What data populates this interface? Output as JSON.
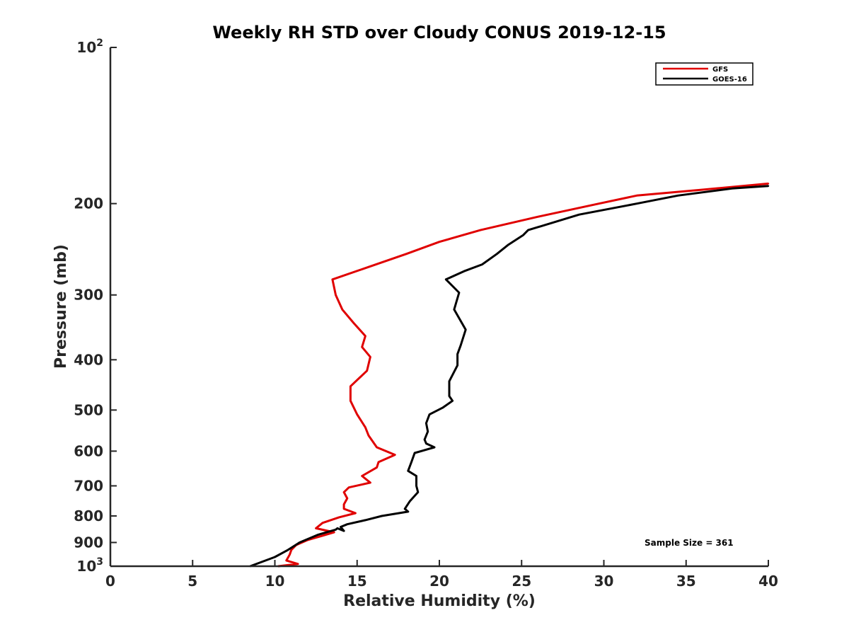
{
  "chart_data": {
    "type": "line",
    "title": "Weekly RH STD over Cloudy CONUS 2019-12-15",
    "xlabel": "Relative Humidity (%)",
    "ylabel": "Pressure (mb)",
    "xlim": [
      0,
      40
    ],
    "ylim": [
      100,
      1000
    ],
    "y_scale": "log",
    "y_reversed": true,
    "grid": false,
    "legend_location": "top-right",
    "x_ticks": [
      "0",
      "5",
      "10",
      "15",
      "20",
      "25",
      "30",
      "35",
      "40"
    ],
    "y_ticks": [
      {
        "value": 100,
        "base": "10",
        "exp": "2"
      },
      {
        "value": 200,
        "label": "200"
      },
      {
        "value": 300,
        "label": "300"
      },
      {
        "value": 400,
        "label": "400"
      },
      {
        "value": 500,
        "label": "500"
      },
      {
        "value": 600,
        "label": "600"
      },
      {
        "value": 700,
        "label": "700"
      },
      {
        "value": 800,
        "label": "800"
      },
      {
        "value": 900,
        "label": "900"
      },
      {
        "value": 1000,
        "base": "10",
        "exp": "3"
      }
    ],
    "series": [
      {
        "name": "GFS",
        "color": "#e00000",
        "x": [
          40.0,
          36.0,
          32.0,
          29.7,
          26.0,
          22.5,
          20.0,
          18.0,
          15.7,
          13.5,
          13.7,
          14.1,
          14.8,
          15.5,
          15.3,
          15.8,
          15.6,
          14.6,
          14.6,
          15.0,
          15.5,
          15.7,
          16.2,
          17.3,
          16.3,
          16.2,
          15.3,
          15.8,
          14.5,
          14.2,
          14.4,
          14.2,
          14.2,
          14.9,
          13.9,
          12.9,
          12.5,
          13.6,
          12.8,
          12.0,
          11.3,
          11.0,
          10.9,
          10.7,
          11.4,
          10.2
        ],
        "y": [
          183,
          188,
          193,
          200,
          212,
          225,
          237,
          250,
          265,
          280,
          300,
          320,
          340,
          360,
          378,
          395,
          420,
          450,
          480,
          510,
          540,
          560,
          590,
          610,
          630,
          645,
          670,
          690,
          705,
          720,
          740,
          760,
          775,
          790,
          805,
          825,
          845,
          860,
          875,
          890,
          910,
          930,
          950,
          975,
          990,
          1000
        ]
      },
      {
        "name": "GOES-16",
        "color": "#000000",
        "x": [
          40.0,
          37.8,
          34.5,
          32.0,
          28.5,
          25.4,
          25.1,
          24.2,
          23.5,
          22.6,
          21.5,
          20.4,
          21.2,
          20.9,
          21.6,
          21.3,
          21.1,
          21.1,
          20.6,
          20.6,
          20.8,
          20.2,
          19.4,
          19.2,
          19.3,
          19.1,
          19.2,
          19.7,
          18.5,
          18.3,
          18.1,
          18.6,
          18.6,
          18.7,
          18.2,
          17.9,
          18.1,
          16.5,
          15.5,
          14.4,
          14.0,
          14.2,
          13.8,
          13.7,
          12.6,
          11.5,
          10.8,
          10.0,
          8.5
        ],
        "y": [
          185,
          187,
          193,
          200,
          210,
          225,
          230,
          240,
          250,
          262,
          270,
          280,
          297,
          320,
          350,
          375,
          390,
          410,
          440,
          470,
          480,
          495,
          510,
          530,
          550,
          570,
          580,
          590,
          605,
          630,
          655,
          670,
          700,
          720,
          750,
          775,
          785,
          800,
          815,
          830,
          840,
          855,
          845,
          850,
          870,
          900,
          930,
          960,
          1000
        ]
      }
    ],
    "annotations": [
      "Sample Size = 361"
    ]
  }
}
